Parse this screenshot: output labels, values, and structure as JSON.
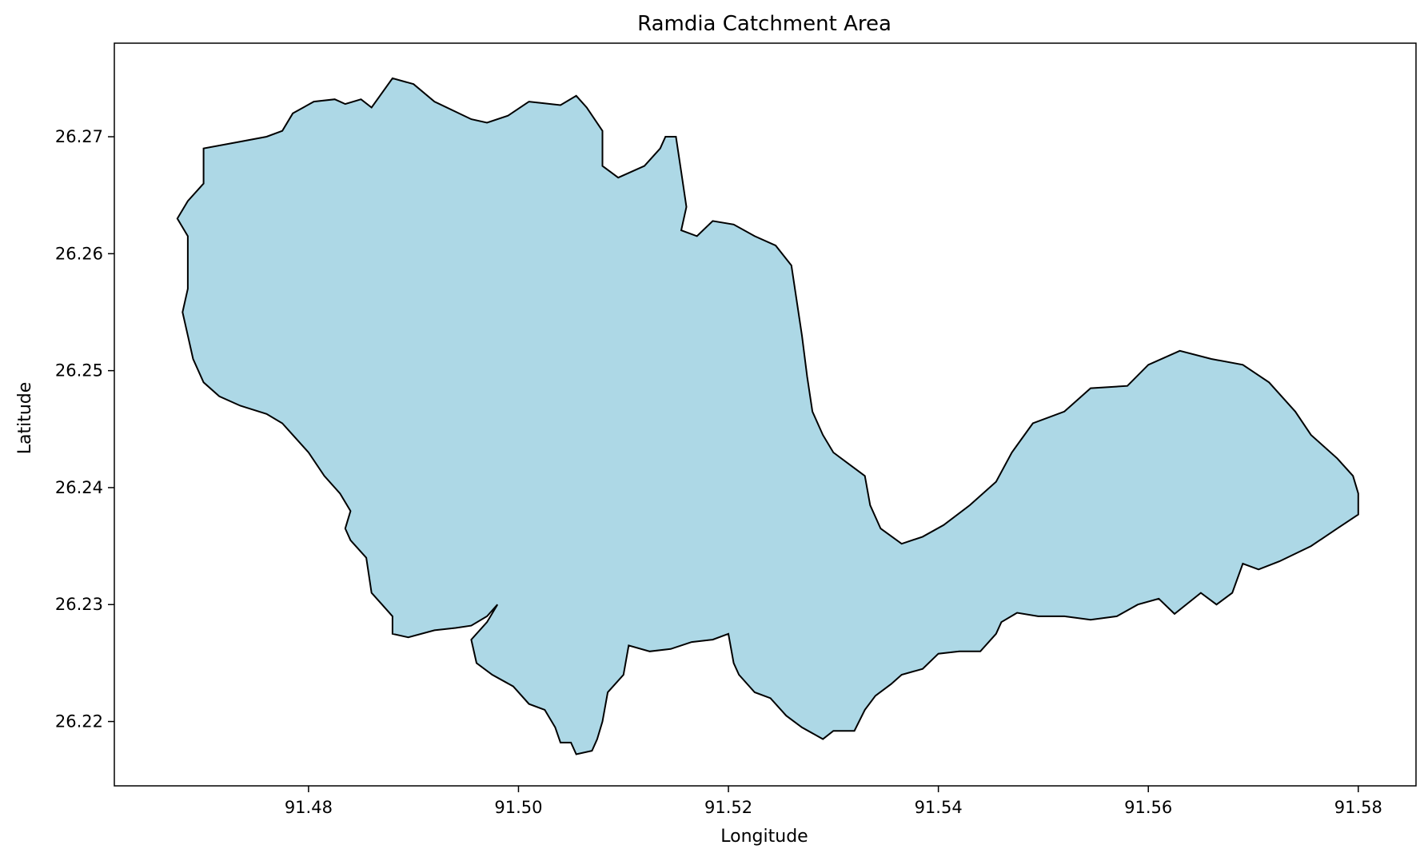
{
  "title": "Ramdia Catchment Area",
  "x_axis": {
    "label": "Longitude",
    "ticks": [
      "91.48",
      "91.50",
      "91.52",
      "91.54",
      "91.56",
      "91.58"
    ],
    "tick_values": [
      91.48,
      91.5,
      91.52,
      91.54,
      91.56,
      91.58
    ]
  },
  "y_axis": {
    "label": "Latitude",
    "ticks": [
      "26.27",
      "26.26",
      "26.25",
      "26.24",
      "26.23",
      "26.22"
    ],
    "tick_values": [
      26.27,
      26.26,
      26.25,
      26.24,
      26.23,
      26.22
    ]
  },
  "xlim": [
    91.4615,
    91.5855
  ],
  "ylim": [
    26.2145,
    26.278
  ],
  "colors": {
    "fill": "#add8e6",
    "edge": "#000000",
    "background": "#ffffff"
  },
  "catchment_outline": [
    [
      91.4675,
      26.263
    ],
    [
      91.4685,
      26.2645
    ],
    [
      91.47,
      26.266
    ],
    [
      91.47,
      26.269
    ],
    [
      91.473,
      26.2695
    ],
    [
      91.476,
      26.27
    ],
    [
      91.4775,
      26.2705
    ],
    [
      91.4785,
      26.272
    ],
    [
      91.4805,
      26.273
    ],
    [
      91.4825,
      26.2732
    ],
    [
      91.4835,
      26.2728
    ],
    [
      91.485,
      26.2732
    ],
    [
      91.486,
      26.2725
    ],
    [
      91.488,
      26.275
    ],
    [
      91.49,
      26.2745
    ],
    [
      91.492,
      26.273
    ],
    [
      91.4955,
      26.2715
    ],
    [
      91.497,
      26.2712
    ],
    [
      91.499,
      26.2718
    ],
    [
      91.501,
      26.273
    ],
    [
      91.504,
      26.2727
    ],
    [
      91.5055,
      26.2735
    ],
    [
      91.5065,
      26.2725
    ],
    [
      91.508,
      26.2705
    ],
    [
      91.508,
      26.2675
    ],
    [
      91.5095,
      26.2665
    ],
    [
      91.512,
      26.2675
    ],
    [
      91.5135,
      26.269
    ],
    [
      91.514,
      26.27
    ],
    [
      91.515,
      26.27
    ],
    [
      91.5155,
      26.267
    ],
    [
      91.516,
      26.264
    ],
    [
      91.5155,
      26.262
    ],
    [
      91.517,
      26.2615
    ],
    [
      91.5185,
      26.2628
    ],
    [
      91.5205,
      26.2625
    ],
    [
      91.5225,
      26.2615
    ],
    [
      91.5245,
      26.2607
    ],
    [
      91.526,
      26.259
    ],
    [
      91.5265,
      26.256
    ],
    [
      91.527,
      26.253
    ],
    [
      91.5275,
      26.2495
    ],
    [
      91.528,
      26.2465
    ],
    [
      91.529,
      26.2445
    ],
    [
      91.53,
      26.243
    ],
    [
      91.5315,
      26.242
    ],
    [
      91.533,
      26.241
    ],
    [
      91.5335,
      26.2385
    ],
    [
      91.5345,
      26.2365
    ],
    [
      91.5365,
      26.2352
    ],
    [
      91.5385,
      26.2358
    ],
    [
      91.5405,
      26.2368
    ],
    [
      91.543,
      26.2385
    ],
    [
      91.5455,
      26.2405
    ],
    [
      91.547,
      26.243
    ],
    [
      91.549,
      26.2455
    ],
    [
      91.552,
      26.2465
    ],
    [
      91.5545,
      26.2485
    ],
    [
      91.558,
      26.2487
    ],
    [
      91.56,
      26.2505
    ],
    [
      91.563,
      26.2517
    ],
    [
      91.566,
      26.251
    ],
    [
      91.569,
      26.2505
    ],
    [
      91.5715,
      26.249
    ],
    [
      91.574,
      26.2465
    ],
    [
      91.5755,
      26.2445
    ],
    [
      91.578,
      26.2425
    ],
    [
      91.5795,
      26.241
    ],
    [
      91.58,
      26.2395
    ],
    [
      91.58,
      26.2377
    ],
    [
      91.578,
      26.2365
    ],
    [
      91.5755,
      26.235
    ],
    [
      91.5725,
      26.2337
    ],
    [
      91.5705,
      26.233
    ],
    [
      91.569,
      26.2335
    ],
    [
      91.568,
      26.231
    ],
    [
      91.5665,
      26.23
    ],
    [
      91.565,
      26.231
    ],
    [
      91.5625,
      26.2292
    ],
    [
      91.561,
      26.2305
    ],
    [
      91.559,
      26.23
    ],
    [
      91.557,
      26.229
    ],
    [
      91.5545,
      26.2287
    ],
    [
      91.552,
      26.229
    ],
    [
      91.5495,
      26.229
    ],
    [
      91.5475,
      26.2293
    ],
    [
      91.546,
      26.2285
    ],
    [
      91.5455,
      26.2275
    ],
    [
      91.544,
      26.226
    ],
    [
      91.542,
      26.226
    ],
    [
      91.54,
      26.2258
    ],
    [
      91.5385,
      26.2245
    ],
    [
      91.5365,
      26.224
    ],
    [
      91.5355,
      26.2232
    ],
    [
      91.534,
      26.2222
    ],
    [
      91.533,
      26.221
    ],
    [
      91.532,
      26.2192
    ],
    [
      91.53,
      26.2192
    ],
    [
      91.529,
      26.2185
    ],
    [
      91.527,
      26.2195
    ],
    [
      91.5255,
      26.2205
    ],
    [
      91.524,
      26.222
    ],
    [
      91.5225,
      26.2225
    ],
    [
      91.521,
      26.224
    ],
    [
      91.5205,
      26.225
    ],
    [
      91.52,
      26.2275
    ],
    [
      91.5185,
      26.227
    ],
    [
      91.5165,
      26.2268
    ],
    [
      91.5145,
      26.2262
    ],
    [
      91.5125,
      26.226
    ],
    [
      91.5105,
      26.2265
    ],
    [
      91.51,
      26.224
    ],
    [
      91.5085,
      26.2225
    ],
    [
      91.508,
      26.22
    ],
    [
      91.5075,
      26.2185
    ],
    [
      91.507,
      26.2175
    ],
    [
      91.5055,
      26.2172
    ],
    [
      91.505,
      26.2182
    ],
    [
      91.504,
      26.2182
    ],
    [
      91.5035,
      26.2195
    ],
    [
      91.5025,
      26.221
    ],
    [
      91.501,
      26.2215
    ],
    [
      91.4995,
      26.223
    ],
    [
      91.4975,
      26.224
    ],
    [
      91.496,
      26.225
    ],
    [
      91.4955,
      26.227
    ],
    [
      91.497,
      26.2285
    ],
    [
      91.498,
      26.23
    ],
    [
      91.497,
      26.229
    ],
    [
      91.4955,
      26.2282
    ],
    [
      91.494,
      26.228
    ],
    [
      91.492,
      26.2278
    ],
    [
      91.4895,
      26.2272
    ],
    [
      91.488,
      26.2275
    ],
    [
      91.488,
      26.229
    ],
    [
      91.487,
      26.23
    ],
    [
      91.486,
      26.231
    ],
    [
      91.4855,
      26.234
    ],
    [
      91.484,
      26.2355
    ],
    [
      91.4835,
      26.2365
    ],
    [
      91.484,
      26.238
    ],
    [
      91.483,
      26.2395
    ],
    [
      91.4815,
      26.241
    ],
    [
      91.48,
      26.243
    ],
    [
      91.4785,
      26.2445
    ],
    [
      91.4775,
      26.2455
    ],
    [
      91.476,
      26.2463
    ],
    [
      91.4735,
      26.247
    ],
    [
      91.4715,
      26.2478
    ],
    [
      91.47,
      26.249
    ],
    [
      91.469,
      26.251
    ],
    [
      91.4685,
      26.253
    ],
    [
      91.468,
      26.255
    ],
    [
      91.4685,
      26.257
    ],
    [
      91.4685,
      26.2595
    ],
    [
      91.4685,
      26.2615
    ],
    [
      91.4675,
      26.263
    ]
  ]
}
